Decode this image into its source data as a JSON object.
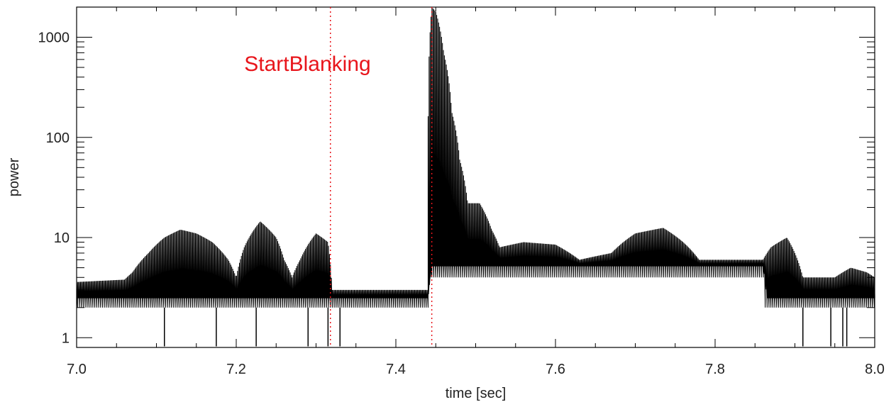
{
  "chart_data": {
    "type": "line",
    "title": "",
    "xlabel": "time [sec]",
    "ylabel": "power",
    "xlim": [
      7.0,
      8.0
    ],
    "ylim": [
      0.8,
      2000
    ],
    "yscale": "log",
    "x_ticks": [
      {
        "value": 7.0,
        "label": "7.0"
      },
      {
        "value": 7.2,
        "label": "7.2"
      },
      {
        "value": 7.4,
        "label": "7.4"
      },
      {
        "value": 7.6,
        "label": "7.6"
      },
      {
        "value": 7.8,
        "label": "7.8"
      },
      {
        "value": 8.0,
        "label": "8.0"
      }
    ],
    "y_ticks": [
      {
        "value": 1,
        "label": "1"
      },
      {
        "value": 10,
        "label": "10"
      },
      {
        "value": 100,
        "label": "100"
      },
      {
        "value": 1000,
        "label": "1000"
      }
    ],
    "grid": false,
    "series": [
      {
        "color": "#000000",
        "baseline": [
          [
            7.0,
            2.5
          ],
          [
            7.44,
            2.5
          ],
          [
            7.445,
            5.2
          ],
          [
            7.86,
            5.2
          ],
          [
            7.865,
            2.5
          ],
          [
            8.0,
            2.5
          ]
        ],
        "envelope": [
          [
            7.0,
            3.6
          ],
          [
            7.06,
            3.8
          ],
          [
            7.07,
            4.5
          ],
          [
            7.09,
            7
          ],
          [
            7.11,
            10
          ],
          [
            7.13,
            12
          ],
          [
            7.15,
            11
          ],
          [
            7.17,
            9
          ],
          [
            7.19,
            6
          ],
          [
            7.2,
            4
          ],
          [
            7.21,
            8
          ],
          [
            7.23,
            14.5
          ],
          [
            7.25,
            10
          ],
          [
            7.26,
            6
          ],
          [
            7.27,
            4
          ],
          [
            7.28,
            6
          ],
          [
            7.3,
            11
          ],
          [
            7.315,
            9
          ],
          [
            7.32,
            3
          ],
          [
            7.44,
            3
          ],
          [
            7.445,
            2000
          ],
          [
            7.45,
            1800
          ],
          [
            7.46,
            700
          ],
          [
            7.47,
            180
          ],
          [
            7.48,
            60
          ],
          [
            7.49,
            22
          ],
          [
            7.505,
            22
          ],
          [
            7.52,
            12
          ],
          [
            7.53,
            8
          ],
          [
            7.56,
            9
          ],
          [
            7.6,
            8.5
          ],
          [
            7.63,
            6
          ],
          [
            7.67,
            7
          ],
          [
            7.7,
            11
          ],
          [
            7.735,
            12.5
          ],
          [
            7.76,
            9
          ],
          [
            7.78,
            6
          ],
          [
            7.86,
            6
          ],
          [
            7.87,
            8
          ],
          [
            7.89,
            10
          ],
          [
            7.9,
            7
          ],
          [
            7.91,
            4
          ],
          [
            7.95,
            4
          ],
          [
            7.97,
            5
          ],
          [
            7.99,
            4.5
          ],
          [
            8.0,
            4
          ]
        ],
        "dropouts": [
          7.11,
          7.175,
          7.225,
          7.29,
          7.315,
          7.33,
          7.91,
          7.945,
          7.96,
          7.965
        ]
      }
    ],
    "annotations": [
      {
        "text": "StartBlanking",
        "x": 7.21,
        "y": 460,
        "color": "#e8151b"
      }
    ],
    "vlines": [
      {
        "x": 7.318,
        "color": "#e8151b",
        "style": "dotted"
      },
      {
        "x": 7.445,
        "color": "#e8151b",
        "style": "dotted"
      }
    ]
  }
}
